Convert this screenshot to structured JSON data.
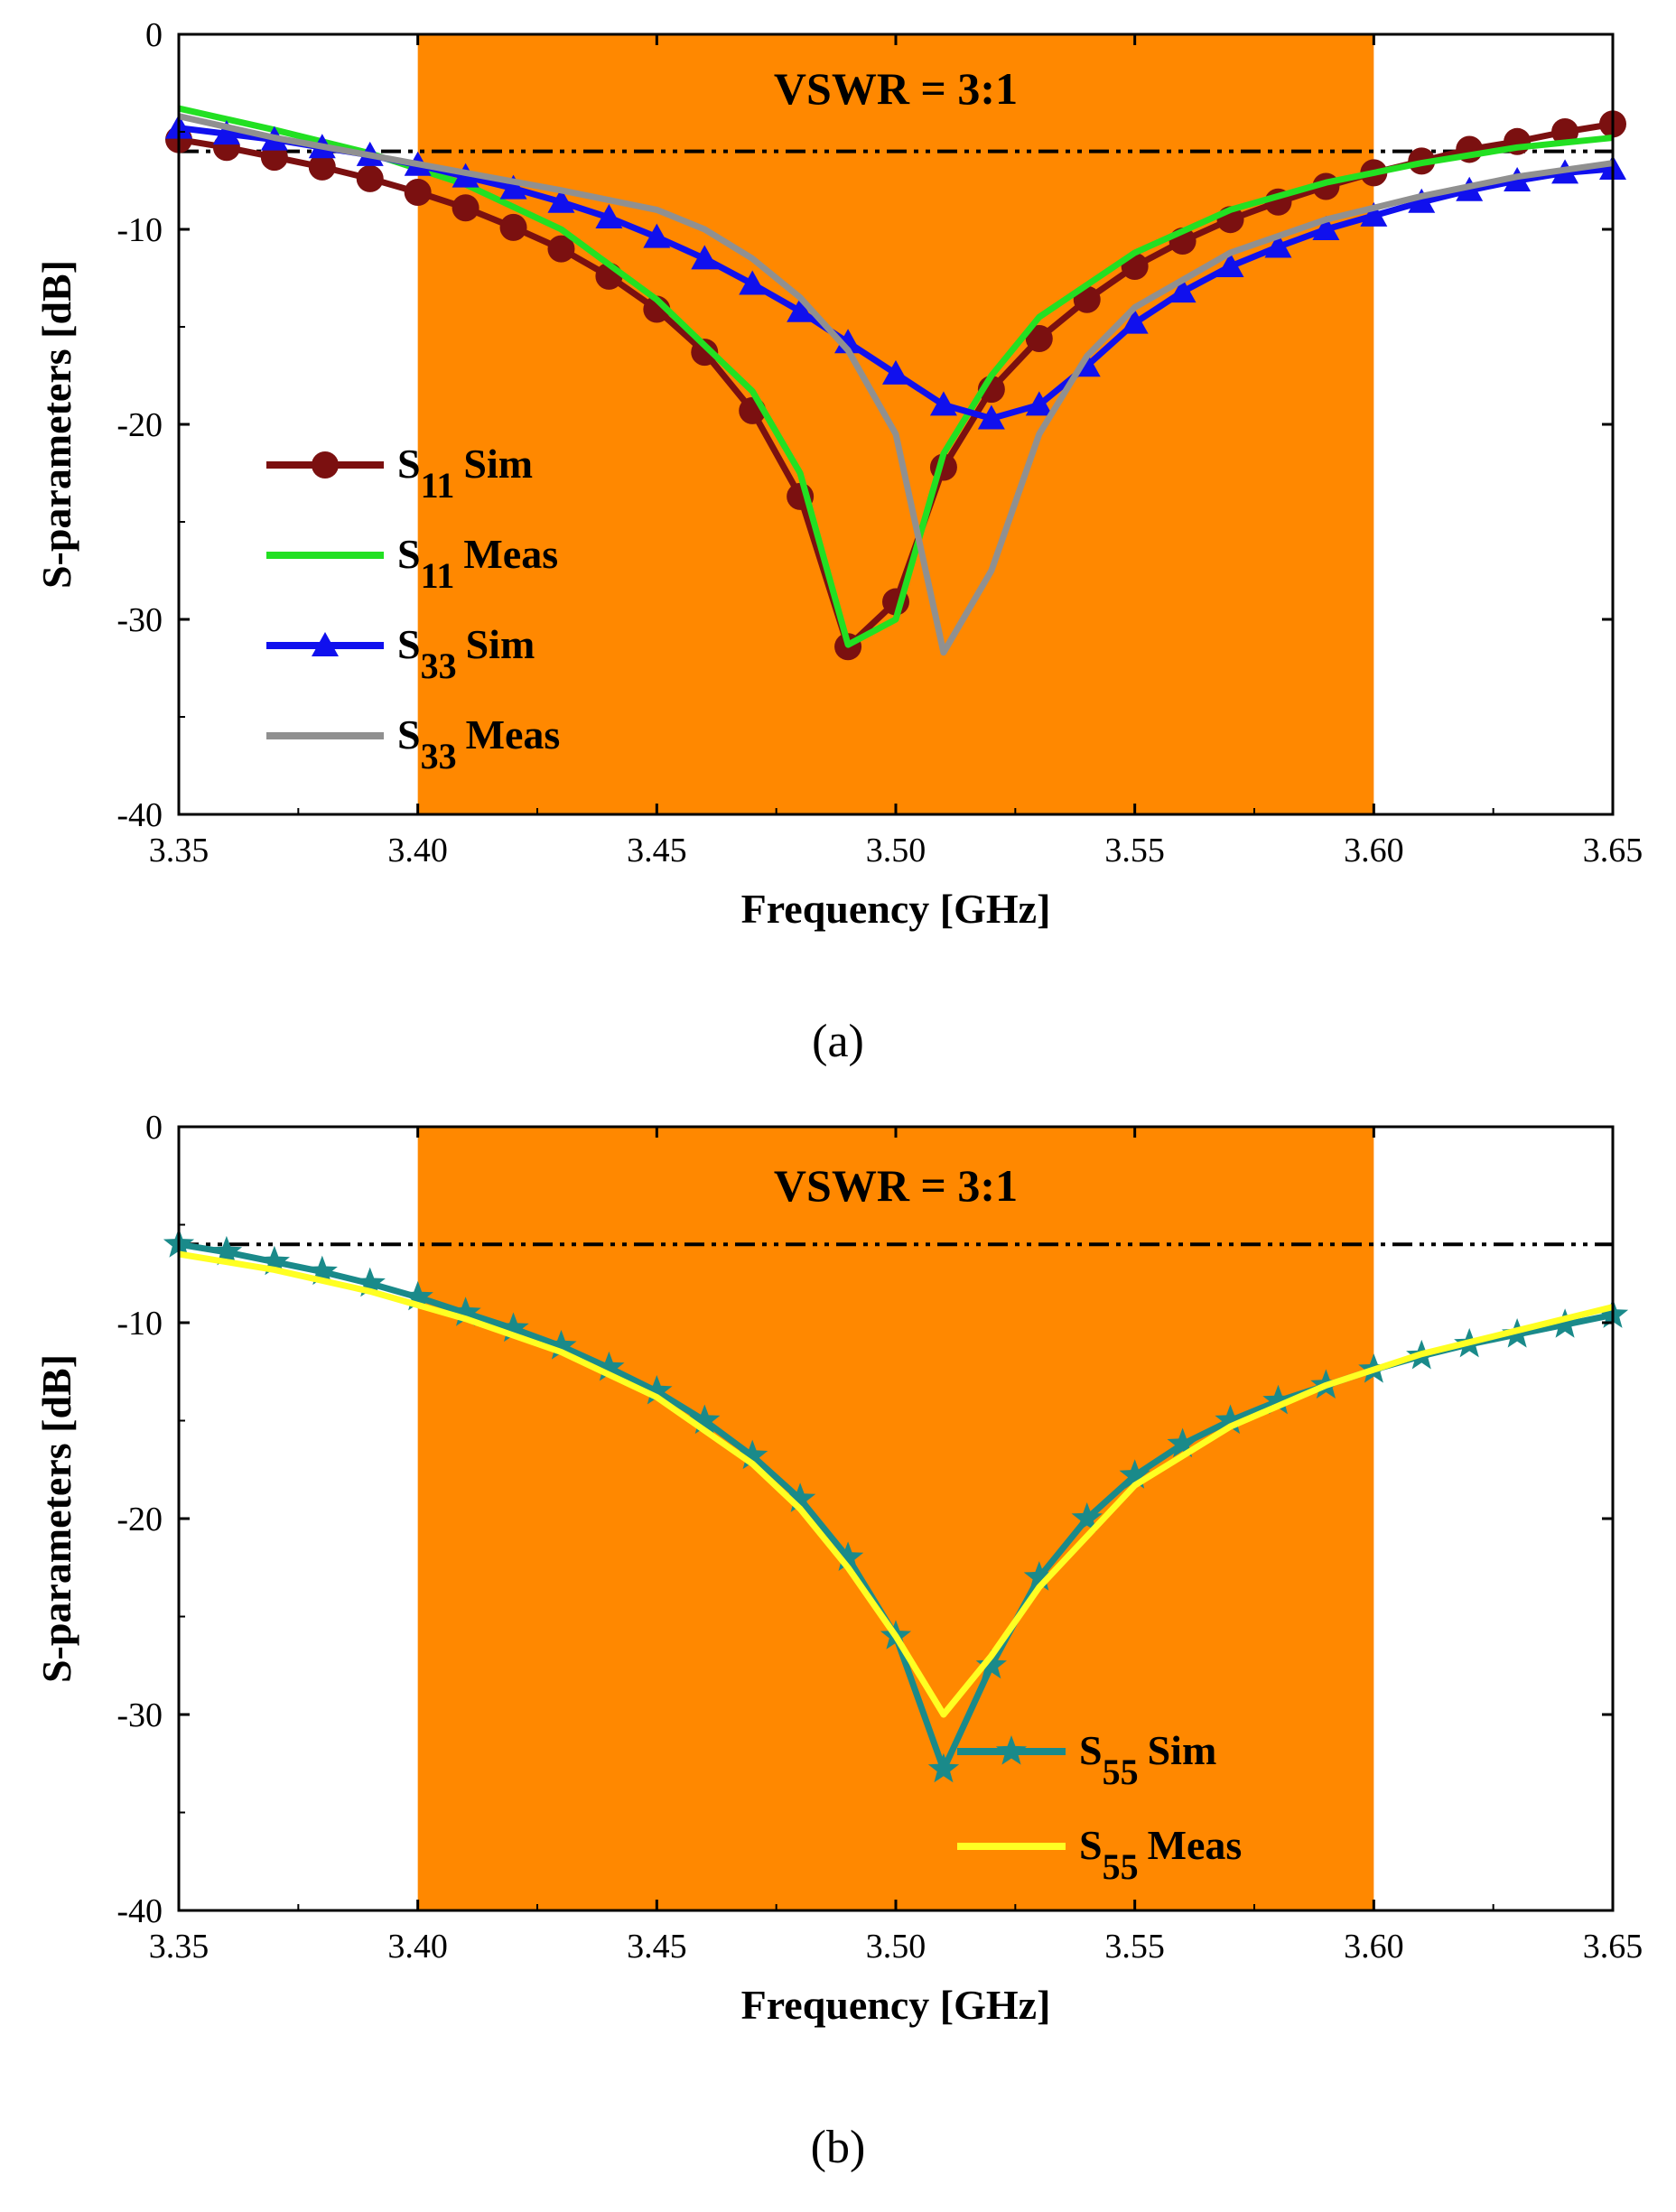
{
  "chart_data": [
    {
      "id": "a",
      "type": "line",
      "panel_label": "(a)",
      "xlabel": "Frequency [GHz]",
      "ylabel": "S-parameters [dB]",
      "xlim": [
        3.35,
        3.65
      ],
      "ylim": [
        -40,
        0
      ],
      "xticks": [
        "3.35",
        "3.40",
        "3.45",
        "3.50",
        "3.55",
        "3.60",
        "3.65"
      ],
      "yticks": [
        "0",
        "-10",
        "-20",
        "-30",
        "-40"
      ],
      "band": {
        "from": 3.4,
        "to": 3.6,
        "color": "#ff8800"
      },
      "reference": {
        "label": "VSWR = 3:1",
        "y": -6
      },
      "legend_position": "center-left",
      "series": [
        {
          "sub": "11",
          "suffix": "Sim",
          "color": "#7b1010",
          "marker": "circle",
          "x": [
            3.35,
            3.36,
            3.37,
            3.38,
            3.39,
            3.4,
            3.41,
            3.42,
            3.43,
            3.44,
            3.45,
            3.46,
            3.47,
            3.48,
            3.49,
            3.5,
            3.51,
            3.52,
            3.53,
            3.54,
            3.55,
            3.56,
            3.57,
            3.58,
            3.59,
            3.6,
            3.61,
            3.62,
            3.63,
            3.64,
            3.65
          ],
          "y": [
            -5.4,
            -5.8,
            -6.3,
            -6.8,
            -7.4,
            -8.1,
            -8.9,
            -9.9,
            -11.0,
            -12.4,
            -14.1,
            -16.3,
            -19.3,
            -23.7,
            -31.4,
            -29.1,
            -22.2,
            -18.2,
            -15.6,
            -13.6,
            -11.9,
            -10.6,
            -9.5,
            -8.6,
            -7.8,
            -7.1,
            -6.5,
            -5.9,
            -5.5,
            -5.0,
            -4.6
          ]
        },
        {
          "sub": "11",
          "suffix": "Meas",
          "color": "#22e022",
          "marker": "none",
          "x": [
            3.35,
            3.37,
            3.39,
            3.41,
            3.43,
            3.45,
            3.47,
            3.48,
            3.49,
            3.5,
            3.51,
            3.52,
            3.53,
            3.55,
            3.57,
            3.59,
            3.61,
            3.63,
            3.65
          ],
          "y": [
            -3.8,
            -4.9,
            -6.1,
            -7.7,
            -10.0,
            -13.6,
            -18.3,
            -22.5,
            -31.3,
            -30.0,
            -21.5,
            -17.5,
            -14.5,
            -11.2,
            -9.0,
            -7.6,
            -6.6,
            -5.8,
            -5.3
          ]
        },
        {
          "sub": "33",
          "suffix": "Sim",
          "color": "#1010ee",
          "marker": "triangle",
          "x": [
            3.35,
            3.36,
            3.37,
            3.38,
            3.39,
            3.4,
            3.41,
            3.42,
            3.43,
            3.44,
            3.45,
            3.46,
            3.47,
            3.48,
            3.49,
            3.5,
            3.51,
            3.52,
            3.53,
            3.54,
            3.55,
            3.56,
            3.57,
            3.58,
            3.59,
            3.6,
            3.61,
            3.62,
            3.63,
            3.64,
            3.65
          ],
          "y": [
            -4.8,
            -5.1,
            -5.4,
            -5.8,
            -6.2,
            -6.7,
            -7.3,
            -7.9,
            -8.6,
            -9.4,
            -10.4,
            -11.5,
            -12.8,
            -14.2,
            -15.8,
            -17.4,
            -19.0,
            -19.7,
            -19.0,
            -17.0,
            -14.8,
            -13.2,
            -11.9,
            -10.9,
            -10.0,
            -9.3,
            -8.6,
            -8.0,
            -7.5,
            -7.1,
            -6.9
          ]
        },
        {
          "sub": "33",
          "suffix": "Meas",
          "color": "#909090",
          "marker": "none",
          "x": [
            3.35,
            3.37,
            3.39,
            3.41,
            3.43,
            3.45,
            3.46,
            3.47,
            3.48,
            3.49,
            3.5,
            3.51,
            3.52,
            3.53,
            3.54,
            3.55,
            3.57,
            3.59,
            3.61,
            3.63,
            3.65
          ],
          "y": [
            -4.2,
            -5.3,
            -6.2,
            -7.1,
            -8.0,
            -9.0,
            -10.0,
            -11.5,
            -13.5,
            -16.2,
            -20.5,
            -31.7,
            -27.5,
            -20.5,
            -16.5,
            -14.0,
            -11.2,
            -9.5,
            -8.3,
            -7.3,
            -6.6
          ]
        }
      ]
    },
    {
      "id": "b",
      "type": "line",
      "panel_label": "(b)",
      "xlabel": "Frequency [GHz]",
      "ylabel": "S-parameters [dB]",
      "xlim": [
        3.35,
        3.65
      ],
      "ylim": [
        -40,
        0
      ],
      "xticks": [
        "3.35",
        "3.40",
        "3.45",
        "3.50",
        "3.55",
        "3.60",
        "3.65"
      ],
      "yticks": [
        "0",
        "-10",
        "-20",
        "-30",
        "-40"
      ],
      "band": {
        "from": 3.4,
        "to": 3.6,
        "color": "#ff8800"
      },
      "reference": {
        "label": "VSWR = 3:1",
        "y": -6
      },
      "legend_position": "bottom-right",
      "series": [
        {
          "sub": "55",
          "suffix": "Sim",
          "color": "#1a8a8a",
          "marker": "star",
          "x": [
            3.35,
            3.36,
            3.37,
            3.38,
            3.39,
            3.4,
            3.41,
            3.42,
            3.43,
            3.44,
            3.45,
            3.46,
            3.47,
            3.48,
            3.49,
            3.5,
            3.51,
            3.52,
            3.53,
            3.54,
            3.55,
            3.56,
            3.57,
            3.58,
            3.59,
            3.6,
            3.61,
            3.62,
            3.63,
            3.64,
            3.65
          ],
          "y": [
            -6.0,
            -6.4,
            -6.9,
            -7.4,
            -8.0,
            -8.7,
            -9.5,
            -10.3,
            -11.2,
            -12.3,
            -13.5,
            -15.0,
            -16.8,
            -19.0,
            -22.0,
            -26.0,
            -32.8,
            -27.5,
            -23.0,
            -20.0,
            -17.8,
            -16.2,
            -15.0,
            -14.0,
            -13.2,
            -12.4,
            -11.7,
            -11.1,
            -10.6,
            -10.1,
            -9.6
          ]
        },
        {
          "sub": "55",
          "suffix": "Meas",
          "color": "#ffff22",
          "marker": "none",
          "x": [
            3.35,
            3.37,
            3.39,
            3.41,
            3.43,
            3.45,
            3.47,
            3.48,
            3.49,
            3.5,
            3.51,
            3.52,
            3.53,
            3.55,
            3.57,
            3.59,
            3.61,
            3.63,
            3.65
          ],
          "y": [
            -6.5,
            -7.3,
            -8.4,
            -9.8,
            -11.5,
            -13.8,
            -17.2,
            -19.5,
            -22.5,
            -26.0,
            -30.0,
            -27.0,
            -23.5,
            -18.3,
            -15.3,
            -13.2,
            -11.6,
            -10.4,
            -9.2
          ]
        }
      ]
    }
  ]
}
